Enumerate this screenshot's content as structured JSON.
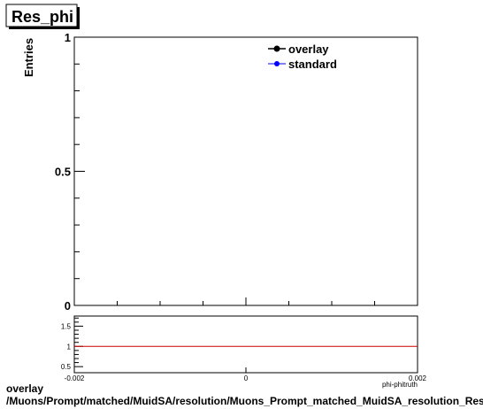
{
  "colors": {
    "overlay": "#000000",
    "standard": "#0000ff",
    "ratio_line": "#cc0000",
    "frame": "#000000"
  },
  "chart_data": [
    {
      "type": "line",
      "title": "Res_phi",
      "xlabel": "",
      "ylabel": "Entries",
      "xlim": [
        -0.002,
        0.002
      ],
      "ylim": [
        0,
        1
      ],
      "ytick_labels": [
        "0",
        "0.5",
        "1"
      ],
      "legend": {
        "placement": "top-right"
      },
      "series": [
        {
          "name": "overlay",
          "marker": "circle",
          "values": []
        },
        {
          "name": "standard",
          "marker": "circle",
          "values": []
        }
      ]
    },
    {
      "type": "line",
      "title": "",
      "xlabel": "phi-phitruth",
      "ylabel": "",
      "xlim": [
        -0.002,
        0.002
      ],
      "ylim": [
        0.35,
        1.75
      ],
      "xtick_labels": [
        "-0.002",
        "0",
        "0.002"
      ],
      "ytick_labels": [
        "0.5",
        "1",
        "1.5"
      ],
      "series": [
        {
          "values": [
            1,
            1
          ],
          "x": [
            -0.002,
            0.002
          ]
        }
      ]
    }
  ],
  "footer": {
    "line1": "overlay",
    "line2": "/Muons/Prompt/matched/MuidSA/resolution/Muons_Prompt_matched_MuidSA_resolution_Res_phi"
  }
}
